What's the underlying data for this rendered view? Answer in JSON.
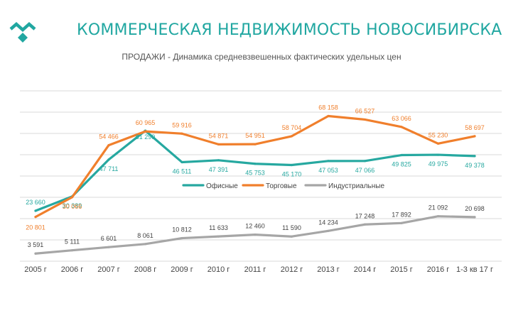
{
  "header": {
    "title": "КОММЕРЧЕСКАЯ НЕДВИЖИМОСТЬ НОВОСИБИРСКА",
    "logo_icon": "brand-logo-icon",
    "brand_color": "#21a7a1"
  },
  "chart_data": {
    "type": "line",
    "title": "ПРОДАЖИ - Динамика средневзвешенных фактических удельных цен",
    "xlabel": "",
    "ylabel": "",
    "ylim": [
      0,
      80000
    ],
    "grid": true,
    "legend_position": "center",
    "categories": [
      "2005 г",
      "2006 г",
      "2007 г",
      "2008 г",
      "2009 г",
      "2010 г",
      "2011 г",
      "2012 г",
      "2013 г",
      "2014 г",
      "2015 г",
      "2016 г",
      "1-3 кв 17 г"
    ],
    "series": [
      {
        "name": "Офисные",
        "color": "#26a8a0",
        "values": [
          23660,
          30389,
          47711,
          61299,
          46511,
          47391,
          45753,
          45170,
          47053,
          47066,
          49825,
          49975,
          49378
        ],
        "labels": [
          "23 660",
          "30 389",
          "47 711",
          "61 299",
          "46 511",
          "47 391",
          "45 753",
          "45 170",
          "47 053",
          "47 066",
          "49 825",
          "49 975",
          "49 378"
        ]
      },
      {
        "name": "Торговые",
        "color": "#f07f2c",
        "values": [
          20801,
          30066,
          54466,
          60965,
          59916,
          54871,
          54951,
          58704,
          68158,
          66527,
          63066,
          55230,
          58697
        ],
        "labels": [
          "20 801",
          "30 066",
          "54 466",
          "60 965",
          "59 916",
          "54 871",
          "54 951",
          "58 704",
          "68 158",
          "66 527",
          "63 066",
          "55 230",
          "58 697"
        ]
      },
      {
        "name": "Индустриальные",
        "color": "#a6a6a6",
        "values": [
          3591,
          5111,
          6601,
          8061,
          10812,
          11633,
          12460,
          11590,
          14234,
          17248,
          17892,
          21092,
          20698
        ],
        "labels": [
          "3 591",
          "5 111",
          "6 601",
          "8 061",
          "10 812",
          "11 633",
          "12 460",
          "11 590",
          "14 234",
          "17 248",
          "17 892",
          "21 092",
          "20 698"
        ]
      }
    ]
  }
}
